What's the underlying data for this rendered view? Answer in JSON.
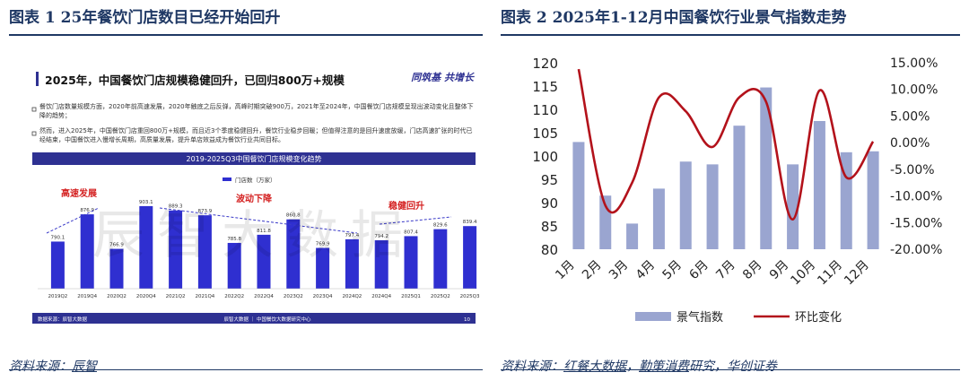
{
  "left_figure": {
    "caption": "图表 1  25年餐饮门店数目已经开始回升",
    "source_prefix": "资料来源：",
    "source_name": "辰智",
    "slide": {
      "title": "2025年，中国餐饮门店规模稳健回升，已回归800万+规模",
      "logo_text": "同筑基 共增长",
      "bullet1": "餐饮门店数量规模方面，2020年前高速发展，2020年触底之后反弹，高峰时期突破900万，2021年至2024年，中国餐饮门店规模呈现出波动变化且整体下降的趋势；",
      "bullet2": "然而，进入2025年，中国餐饮门店重回800万+规模，而且近3个季度稳健回升，餐饮行业稳步回暖；但值得注意的是回升速度放缓，门店高速扩张的时代已经结束，中国餐饮进入慢增长周期，高质量发展，提升单店效益成为餐饮行业共同目标。",
      "chart_title": "2019-2025Q3中国餐饮门店规模变化趋势",
      "footer_left": "数据来源：辰智大数据",
      "footer_mid": "辰智大数据 ｜ 中国餐饮大数据研究中心",
      "footer_page": "10",
      "watermark": "辰智大数据"
    }
  },
  "right_figure": {
    "caption": "图表 2  2025年1-12月中国餐饮行业景气指数走势",
    "source_prefix": "资料来源：",
    "source_1": "红餐大数据",
    "source_sep": "，",
    "source_2": "勤策消费",
    "source_2b": "研究，华创证券"
  },
  "colors": {
    "navy": "#1f3864",
    "bar_blue": "#2f2fd0",
    "idx_bar": "#9aa5d0",
    "line_red": "#b3121b",
    "banner": "#2e3192"
  },
  "chart_data": [
    {
      "type": "bar",
      "title": "2019-2025Q3中国餐饮门店规模变化趋势",
      "legend": [
        "门店数（万家）"
      ],
      "categories": [
        "2019Q2",
        "2019Q4",
        "2020Q2",
        "2020Q4",
        "2021Q2",
        "2021Q4",
        "2022Q2",
        "2022Q4",
        "2023Q2",
        "2023Q4",
        "2024Q2",
        "2024Q4",
        "2025Q1",
        "2025Q2",
        "2025Q3"
      ],
      "series": [
        {
          "name": "门店数（万家）",
          "values": [
            790.1,
            876.9,
            766.9,
            903.1,
            889.3,
            873.9,
            785.8,
            811.8,
            860.8,
            769.9,
            797.4,
            794.2,
            807.4,
            829.6,
            839.4
          ]
        }
      ],
      "annotations": [
        "高速发展",
        "波动下降",
        "稳健回升"
      ],
      "ylim": [
        640,
        960
      ]
    },
    {
      "type": "bar",
      "categories": [
        "1月",
        "2月",
        "3月",
        "4月",
        "5月",
        "6月",
        "7月",
        "8月",
        "9月",
        "10月",
        "11月",
        "12月"
      ],
      "series": [
        {
          "name": "景气指数",
          "type": "bar",
          "axis": "left",
          "values": [
            103,
            91.5,
            85.5,
            93,
            98.8,
            98.2,
            106.5,
            114.7,
            98.2,
            107.5,
            100.8,
            101
          ]
        },
        {
          "name": "环比变化",
          "type": "line",
          "axis": "right",
          "values": [
            13.8,
            -11.8,
            -7.5,
            8.5,
            5.9,
            -0.8,
            8.5,
            7.7,
            -14.4,
            9.8,
            -6.5,
            0.2
          ]
        }
      ],
      "y_left": {
        "ylim": [
          80,
          120
        ],
        "ticks": [
          "80",
          "85",
          "90",
          "95",
          "100",
          "105",
          "110",
          "115",
          "120"
        ]
      },
      "y_right": {
        "ylim": [
          -20,
          15
        ],
        "ticks": [
          "-20.00%",
          "-15.00%",
          "-10.00%",
          "-5.00%",
          "0.00%",
          "5.00%",
          "10.00%",
          "15.00%"
        ]
      },
      "legend": [
        "景气指数",
        "环比变化"
      ]
    }
  ]
}
